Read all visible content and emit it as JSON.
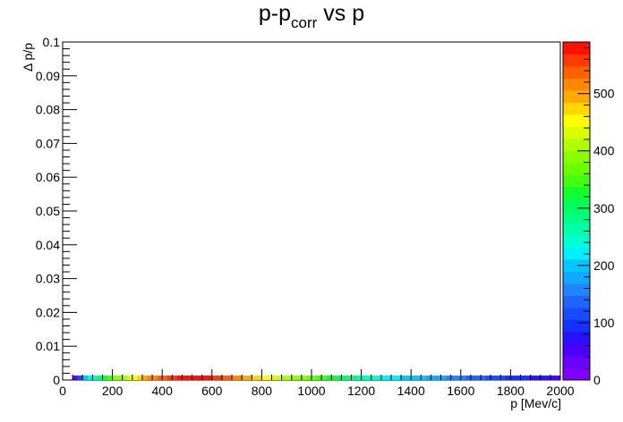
{
  "chart_data": {
    "type": "heatmap",
    "title": "p-p",
    "title_sub": "corr",
    "title_tail": " vs p",
    "xlabel": "p [Mev/c]",
    "ylabel": "Δ p/p",
    "xlim": [
      0,
      2000
    ],
    "ylim": [
      0,
      0.1
    ],
    "x_ticks": [
      "0",
      "200",
      "400",
      "600",
      "800",
      "1000",
      "1200",
      "1400",
      "1600",
      "1800",
      "2000"
    ],
    "y_ticks": [
      "0",
      "0.01",
      "0.02",
      "0.03",
      "0.04",
      "0.05",
      "0.06",
      "0.07",
      "0.08",
      "0.09",
      "0.1"
    ],
    "z_range": [
      0,
      590
    ],
    "z_ticks": [
      "0",
      "100",
      "200",
      "300",
      "400",
      "500"
    ],
    "palette": [
      "#7f00ff",
      "#6a00ff",
      "#4a00ff",
      "#2a10ff",
      "#1530ff",
      "#1a4cff",
      "#1f66ff",
      "#1f86ff",
      "#11a8ff",
      "#00c8ff",
      "#00f0ff",
      "#00ffd0",
      "#00ffa8",
      "#00ff80",
      "#00ff5a",
      "#10ff30",
      "#40ff10",
      "#6aff00",
      "#8aff00",
      "#b0ff00",
      "#d8ff00",
      "#ffff00",
      "#ffd800",
      "#ffaa00",
      "#ff8800",
      "#ff6000",
      "#ff3a00",
      "#ff1000"
    ],
    "bin_width": 20,
    "y_bin": [
      0,
      0.0013
    ],
    "bins_x": [
      40,
      60,
      80,
      100,
      120,
      140,
      160,
      180,
      200,
      220,
      240,
      260,
      280,
      300,
      320,
      340,
      360,
      380,
      400,
      420,
      440,
      460,
      480,
      500,
      520,
      540,
      560,
      580,
      600,
      620,
      640,
      660,
      680,
      700,
      720,
      740,
      760,
      780,
      800,
      820,
      840,
      860,
      880,
      900,
      920,
      940,
      960,
      980,
      1000,
      1020,
      1040,
      1060,
      1080,
      1100,
      1120,
      1140,
      1160,
      1180,
      1200,
      1220,
      1240,
      1260,
      1280,
      1300,
      1320,
      1340,
      1360,
      1380,
      1400,
      1420,
      1440,
      1460,
      1480,
      1500,
      1520,
      1540,
      1560,
      1580,
      1600,
      1620,
      1640,
      1660,
      1680,
      1700,
      1720,
      1740,
      1760,
      1780,
      1800,
      1820,
      1840,
      1860,
      1880,
      1900,
      1920,
      1940,
      1960,
      1980
    ],
    "counts": [
      40,
      120,
      200,
      230,
      260,
      290,
      320,
      350,
      380,
      400,
      420,
      440,
      460,
      480,
      500,
      510,
      520,
      530,
      545,
      555,
      560,
      570,
      575,
      580,
      585,
      580,
      575,
      570,
      560,
      550,
      540,
      530,
      520,
      510,
      500,
      490,
      480,
      470,
      460,
      450,
      440,
      430,
      420,
      410,
      400,
      390,
      380,
      370,
      360,
      350,
      340,
      330,
      320,
      310,
      300,
      290,
      280,
      270,
      260,
      250,
      240,
      235,
      230,
      225,
      220,
      215,
      210,
      205,
      200,
      195,
      190,
      185,
      180,
      175,
      170,
      165,
      160,
      155,
      150,
      145,
      140,
      135,
      130,
      125,
      120,
      115,
      110,
      105,
      100,
      95,
      90,
      85,
      80,
      75,
      70,
      65,
      60,
      55
    ]
  }
}
